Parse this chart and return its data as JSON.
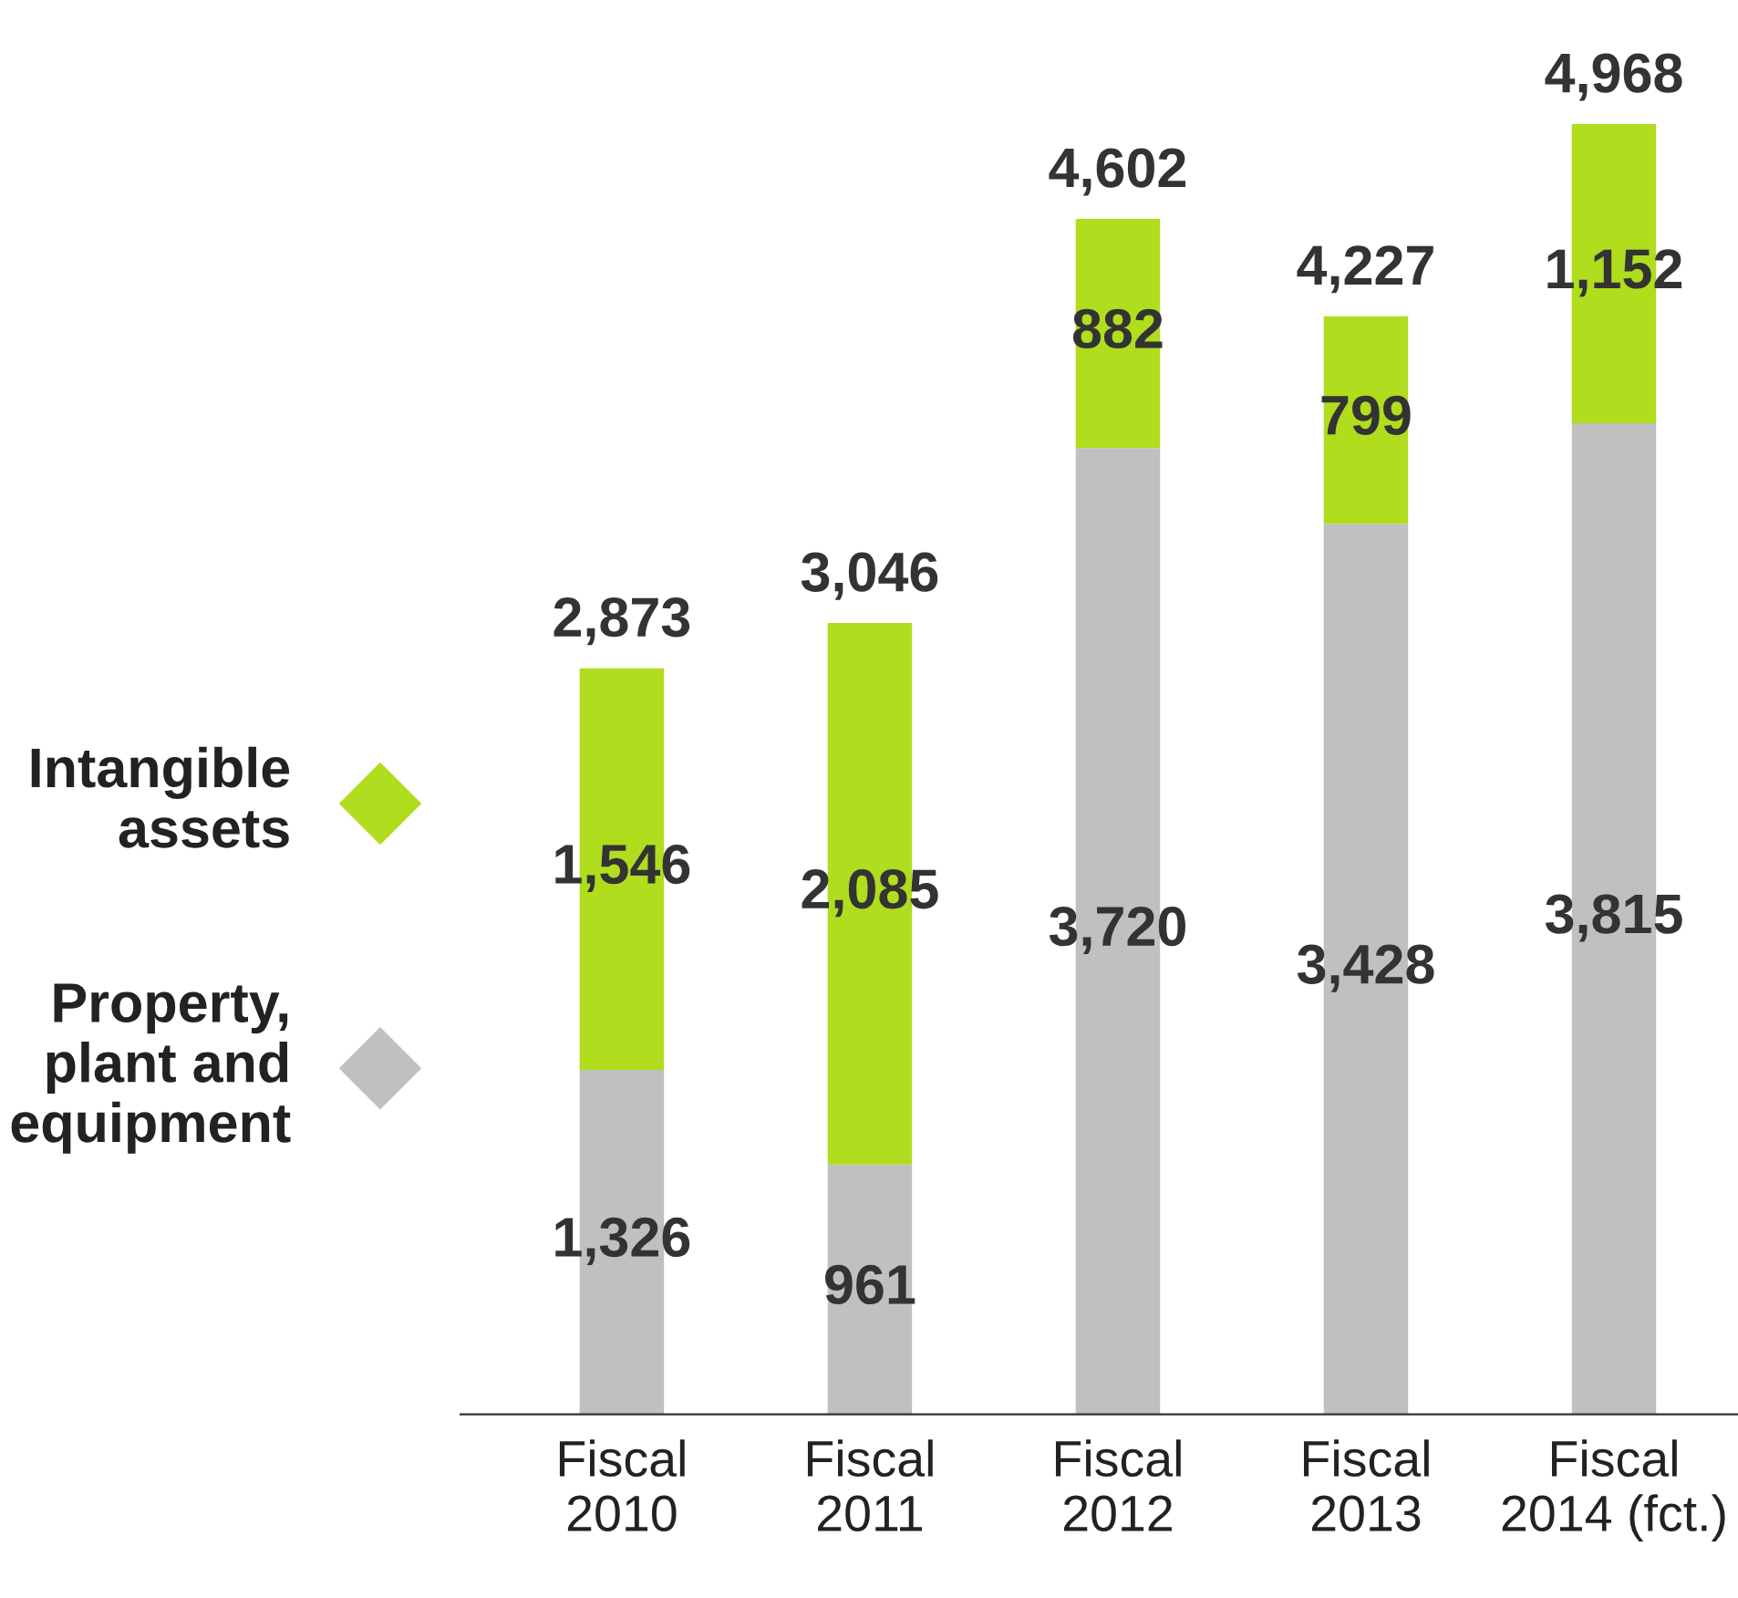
{
  "chart_data": {
    "type": "bar",
    "stacked": true,
    "categories": [
      "Fiscal\n2010",
      "Fiscal\n2011",
      "Fiscal\n2012",
      "Fiscal\n2013",
      "Fiscal\n2014 (fct.)"
    ],
    "series": [
      {
        "name": "Property,\nplant and\nequipment",
        "color": "#c0c0c0",
        "values": [
          1326,
          961,
          3720,
          3428,
          3815
        ],
        "value_labels": [
          "1,326",
          "961",
          "3,720",
          "3,428",
          "3,815"
        ]
      },
      {
        "name": "Intangible\nassets",
        "color": "#b0dd1e",
        "values": [
          1546,
          2085,
          882,
          799,
          1152
        ],
        "value_labels": [
          "1,546",
          "2,085",
          "882",
          "799",
          "1,152"
        ]
      }
    ],
    "totals": [
      "2,873",
      "3,046",
      "4,602",
      "4,227",
      "4,968"
    ],
    "legend": "left",
    "marker": "diamond",
    "grid": false
  }
}
